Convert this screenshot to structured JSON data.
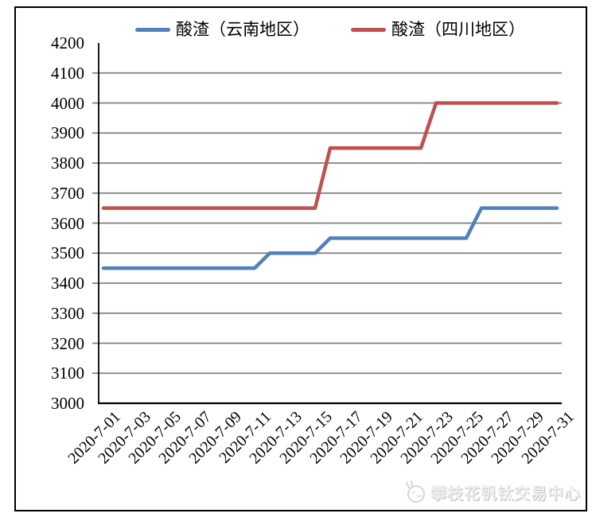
{
  "legend": {
    "items": [
      {
        "label": "酸渣（云南地区）",
        "color": "#4F81BD"
      },
      {
        "label": "酸渣（四川地区）",
        "color": "#C0504D"
      }
    ]
  },
  "watermark": {
    "logo_icon": "mascot-logo-icon",
    "text": "攀枝花钒钛交易中心"
  },
  "colors": {
    "series_yunnan": "#4F81BD",
    "series_sichuan": "#C0504D",
    "gridline": "#7F7F7F",
    "axis": "#000000",
    "background": "#FFFFFF",
    "frame_border": "#000000",
    "watermark_text": "#EFEFEF"
  },
  "chart_data": {
    "type": "line",
    "title": "",
    "xlabel": "",
    "ylabel": "",
    "ylim": [
      3000,
      4200
    ],
    "y_tick_step": 100,
    "y_tick_labels": [
      "4200",
      "4100",
      "4000",
      "3900",
      "3800",
      "3700",
      "3600",
      "3500",
      "3400",
      "3300",
      "3200",
      "3100",
      "3000"
    ],
    "grid": "horizontal",
    "legend_position": "top",
    "x": [
      "2020-7-01",
      "2020-7-02",
      "2020-7-03",
      "2020-7-04",
      "2020-7-05",
      "2020-7-06",
      "2020-7-07",
      "2020-7-08",
      "2020-7-09",
      "2020-7-10",
      "2020-7-11",
      "2020-7-12",
      "2020-7-13",
      "2020-7-14",
      "2020-7-15",
      "2020-7-16",
      "2020-7-17",
      "2020-7-18",
      "2020-7-19",
      "2020-7-20",
      "2020-7-21",
      "2020-7-22",
      "2020-7-23",
      "2020-7-24",
      "2020-7-25",
      "2020-7-26",
      "2020-7-27",
      "2020-7-28",
      "2020-7-29",
      "2020-7-30",
      "2020-7-31"
    ],
    "x_tick_labels": [
      "2020-7-01",
      "2020-7-03",
      "2020-7-05",
      "2020-7-07",
      "2020-7-09",
      "2020-7-11",
      "2020-7-13",
      "2020-7-15",
      "2020-7-17",
      "2020-7-19",
      "2020-7-21",
      "2020-7-23",
      "2020-7-25",
      "2020-7-27",
      "2020-7-29",
      "2020-7-31"
    ],
    "series": [
      {
        "name": "酸渣（云南地区）",
        "color": "#4F81BD",
        "values": [
          3450,
          3450,
          3450,
          3450,
          3450,
          3450,
          3450,
          3450,
          3450,
          3450,
          3450,
          3500,
          3500,
          3500,
          3500,
          3550,
          3550,
          3550,
          3550,
          3550,
          3550,
          3550,
          3550,
          3550,
          3550,
          3650,
          3650,
          3650,
          3650,
          3650,
          3650
        ]
      },
      {
        "name": "酸渣（四川地区）",
        "color": "#C0504D",
        "values": [
          3650,
          3650,
          3650,
          3650,
          3650,
          3650,
          3650,
          3650,
          3650,
          3650,
          3650,
          3650,
          3650,
          3650,
          3650,
          3850,
          3850,
          3850,
          3850,
          3850,
          3850,
          3850,
          4000,
          4000,
          4000,
          4000,
          4000,
          4000,
          4000,
          4000,
          4000
        ]
      }
    ]
  }
}
